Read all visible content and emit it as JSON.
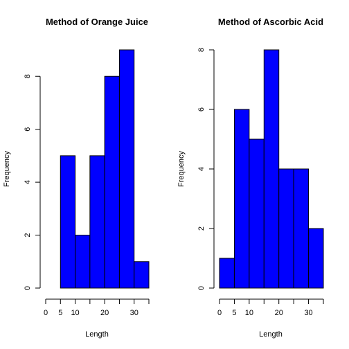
{
  "colors": {
    "bar": "#0000FF",
    "edge": "#000000"
  },
  "chart_data": [
    {
      "type": "bar",
      "title": "Method of Orange Juice",
      "xlabel": "Length",
      "ylabel": "Frequency",
      "bins": [
        [
          5,
          10
        ],
        [
          10,
          15
        ],
        [
          15,
          20
        ],
        [
          20,
          25
        ],
        [
          25,
          30
        ],
        [
          30,
          35
        ]
      ],
      "values": [
        5,
        2,
        5,
        8,
        9,
        1
      ],
      "xlim": [
        0,
        35
      ],
      "ylim": [
        0,
        9
      ],
      "xticks": [
        0,
        5,
        10,
        20,
        30
      ],
      "yticks": [
        0,
        2,
        4,
        6,
        8
      ],
      "grid": false
    },
    {
      "type": "bar",
      "title": "Method of Ascorbic Acid",
      "xlabel": "Length",
      "ylabel": "Frequency",
      "bins": [
        [
          0,
          5
        ],
        [
          5,
          10
        ],
        [
          10,
          15
        ],
        [
          15,
          20
        ],
        [
          20,
          25
        ],
        [
          25,
          30
        ],
        [
          30,
          35
        ]
      ],
      "values": [
        1,
        6,
        5,
        8,
        4,
        4,
        2
      ],
      "xlim": [
        0,
        35
      ],
      "ylim": [
        0,
        8
      ],
      "xticks": [
        0,
        5,
        10,
        20,
        30
      ],
      "yticks": [
        0,
        2,
        4,
        6,
        8
      ],
      "grid": false
    }
  ]
}
